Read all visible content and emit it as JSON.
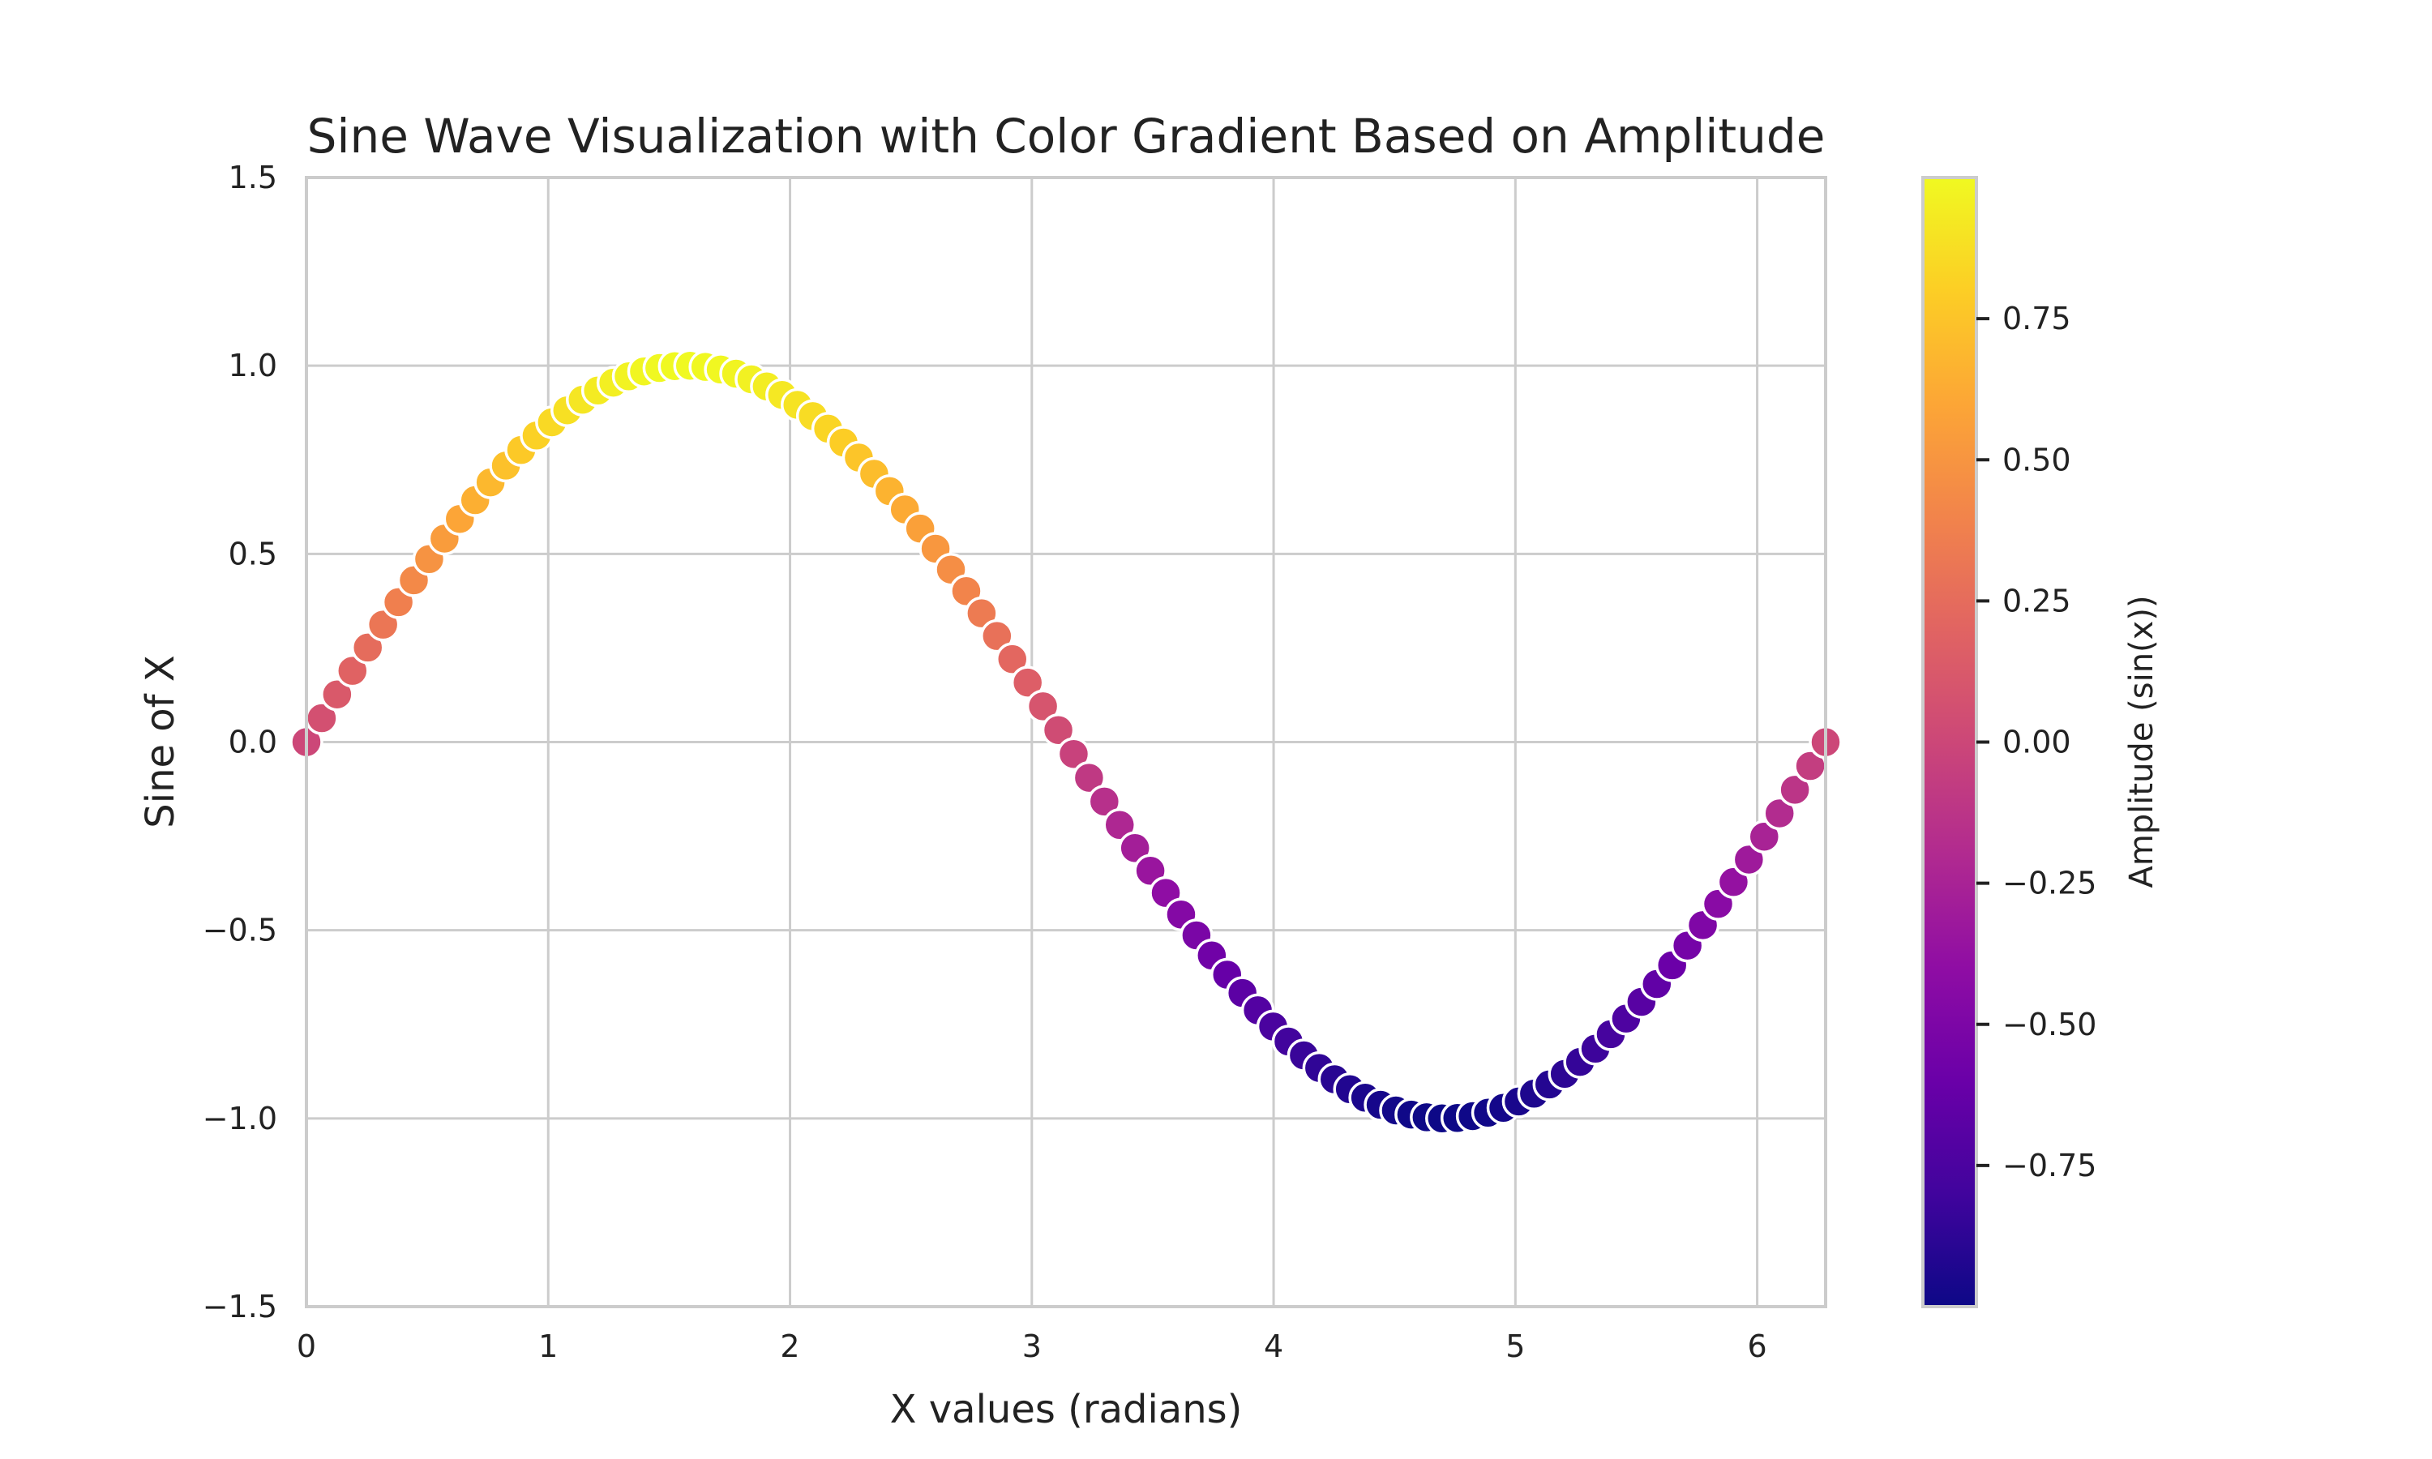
{
  "chart_data": {
    "type": "scatter",
    "title": "Sine Wave Visualization with Color Gradient Based on Amplitude",
    "xlabel": "X values (radians)",
    "ylabel": "Sine of X",
    "xlim": [
      0,
      6.283
    ],
    "ylim": [
      -1.5,
      1.5
    ],
    "x_ticks": [
      0,
      1,
      2,
      3,
      4,
      5,
      6
    ],
    "x_tick_labels": [
      "0",
      "1",
      "2",
      "3",
      "4",
      "5",
      "6"
    ],
    "y_ticks": [
      1.5,
      1.0,
      0.5,
      0.0,
      -0.5,
      -1.0,
      -1.5
    ],
    "y_tick_labels": [
      "1.5",
      "1.0",
      "0.5",
      "0.0",
      "−0.5",
      "−1.0",
      "−1.5"
    ],
    "grid": true,
    "colormap": "plasma",
    "point_edge_color": "#ffffff",
    "series": [
      {
        "x_start": 0,
        "x_end": 6.283,
        "count": 100,
        "function": "sin",
        "color_by": "y"
      }
    ],
    "colorbar": {
      "label": "Amplitude (sin(x))",
      "range": [
        -1.0,
        1.0
      ],
      "ticks": [
        0.75,
        0.5,
        0.25,
        0.0,
        -0.25,
        -0.5,
        -0.75
      ],
      "tick_labels": [
        "0.75",
        "0.50",
        "0.25",
        "0.00",
        "−0.25",
        "−0.50",
        "−0.75"
      ]
    }
  }
}
